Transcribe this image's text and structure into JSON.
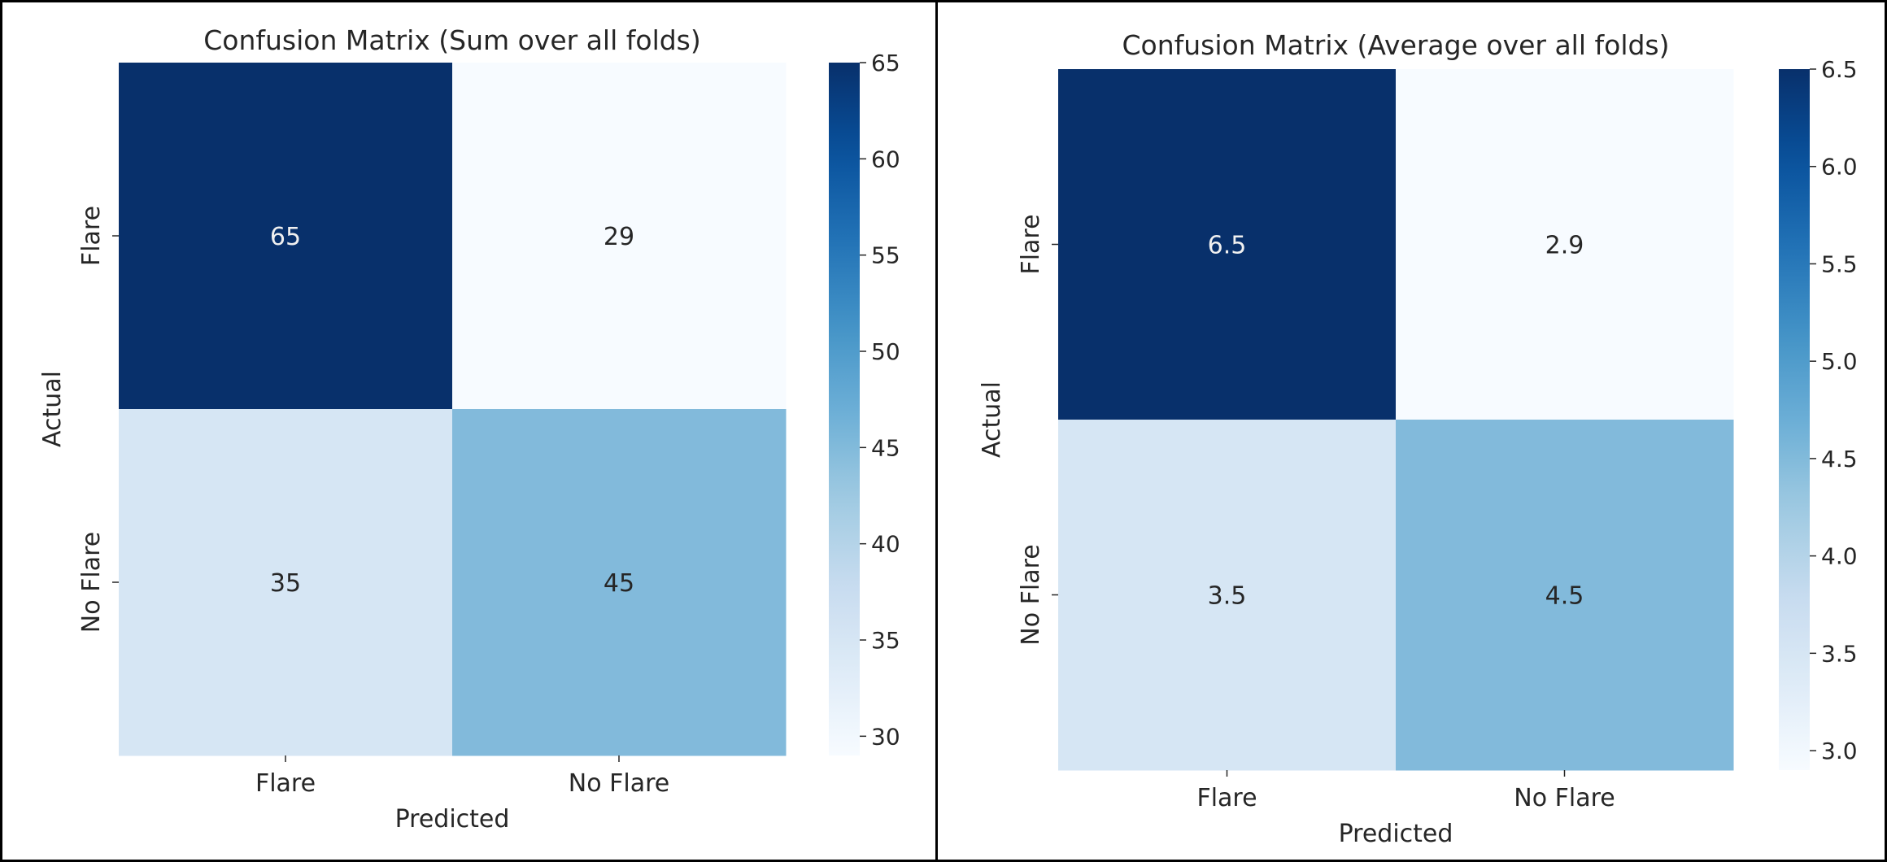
{
  "chart_data": [
    {
      "type": "heatmap",
      "title": "Confusion Matrix (Sum over all folds)",
      "xlabel": "Predicted",
      "ylabel": "Actual",
      "x_categories": [
        "Flare",
        "No Flare"
      ],
      "y_categories": [
        "Flare",
        "No Flare"
      ],
      "values": [
        [
          65,
          29
        ],
        [
          35,
          45
        ]
      ],
      "value_labels": [
        [
          "65",
          "29"
        ],
        [
          "35",
          "45"
        ]
      ],
      "colormap": "Blues",
      "vmin": 29,
      "vmax": 65,
      "colorbar_ticks": [
        30,
        35,
        40,
        45,
        50,
        55,
        60,
        65
      ],
      "colorbar_tick_labels": [
        "30",
        "35",
        "40",
        "45",
        "50",
        "55",
        "60",
        "65"
      ],
      "legend": "colorbar-right"
    },
    {
      "type": "heatmap",
      "title": "Confusion Matrix (Average over all folds)",
      "xlabel": "Predicted",
      "ylabel": "Actual",
      "x_categories": [
        "Flare",
        "No Flare"
      ],
      "y_categories": [
        "Flare",
        "No Flare"
      ],
      "values": [
        [
          6.5,
          2.9
        ],
        [
          3.5,
          4.5
        ]
      ],
      "value_labels": [
        [
          "6.5",
          "2.9"
        ],
        [
          "3.5",
          "4.5"
        ]
      ],
      "colormap": "Blues",
      "vmin": 2.9,
      "vmax": 6.5,
      "colorbar_ticks": [
        3.0,
        3.5,
        4.0,
        4.5,
        5.0,
        5.5,
        6.0,
        6.5
      ],
      "colorbar_tick_labels": [
        "3.0",
        "3.5",
        "4.0",
        "4.5",
        "5.0",
        "5.5",
        "6.0",
        "6.5"
      ],
      "legend": "colorbar-right"
    }
  ]
}
